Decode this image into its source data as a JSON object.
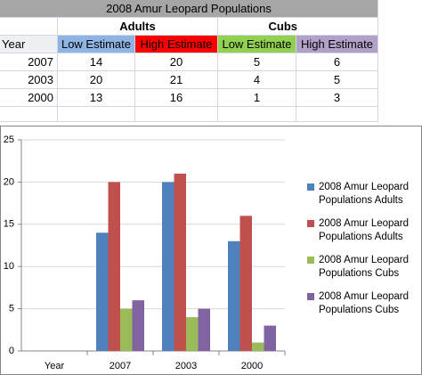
{
  "table": {
    "title": "2008 Amur Leopard Populations",
    "groups": [
      "Adults",
      "Cubs"
    ],
    "header": [
      "Year",
      "Low Estimate",
      "High Estimate",
      "Low Estimate",
      "High Estimate"
    ],
    "header_colors": [
      null,
      "#8db4e2",
      "#ff0000",
      "#92d050",
      "#b1a0c7"
    ],
    "rows": [
      [
        2007,
        14,
        20,
        5,
        6
      ],
      [
        2003,
        20,
        21,
        4,
        5
      ],
      [
        2000,
        13,
        16,
        1,
        3
      ]
    ]
  },
  "chart_data": {
    "type": "bar",
    "categories": [
      "Year",
      "2007",
      "2003",
      "2000"
    ],
    "series": [
      {
        "name": "2008 Amur Leopard Populations Adults",
        "color": "#4f81bd",
        "values": [
          null,
          14,
          20,
          13
        ]
      },
      {
        "name": "2008 Amur Leopard Populations Adults",
        "color": "#c0504d",
        "values": [
          null,
          20,
          21,
          16
        ]
      },
      {
        "name": "2008 Amur Leopard Populations Cubs",
        "color": "#9bbb59",
        "values": [
          null,
          5,
          4,
          1
        ]
      },
      {
        "name": "2008 Amur Leopard Populations Cubs",
        "color": "#8064a2",
        "values": [
          null,
          6,
          5,
          3
        ]
      }
    ],
    "ylim": [
      0,
      25
    ],
    "yticks": [
      0,
      5,
      10,
      15,
      20,
      25
    ],
    "grid": true,
    "legend": "right"
  }
}
